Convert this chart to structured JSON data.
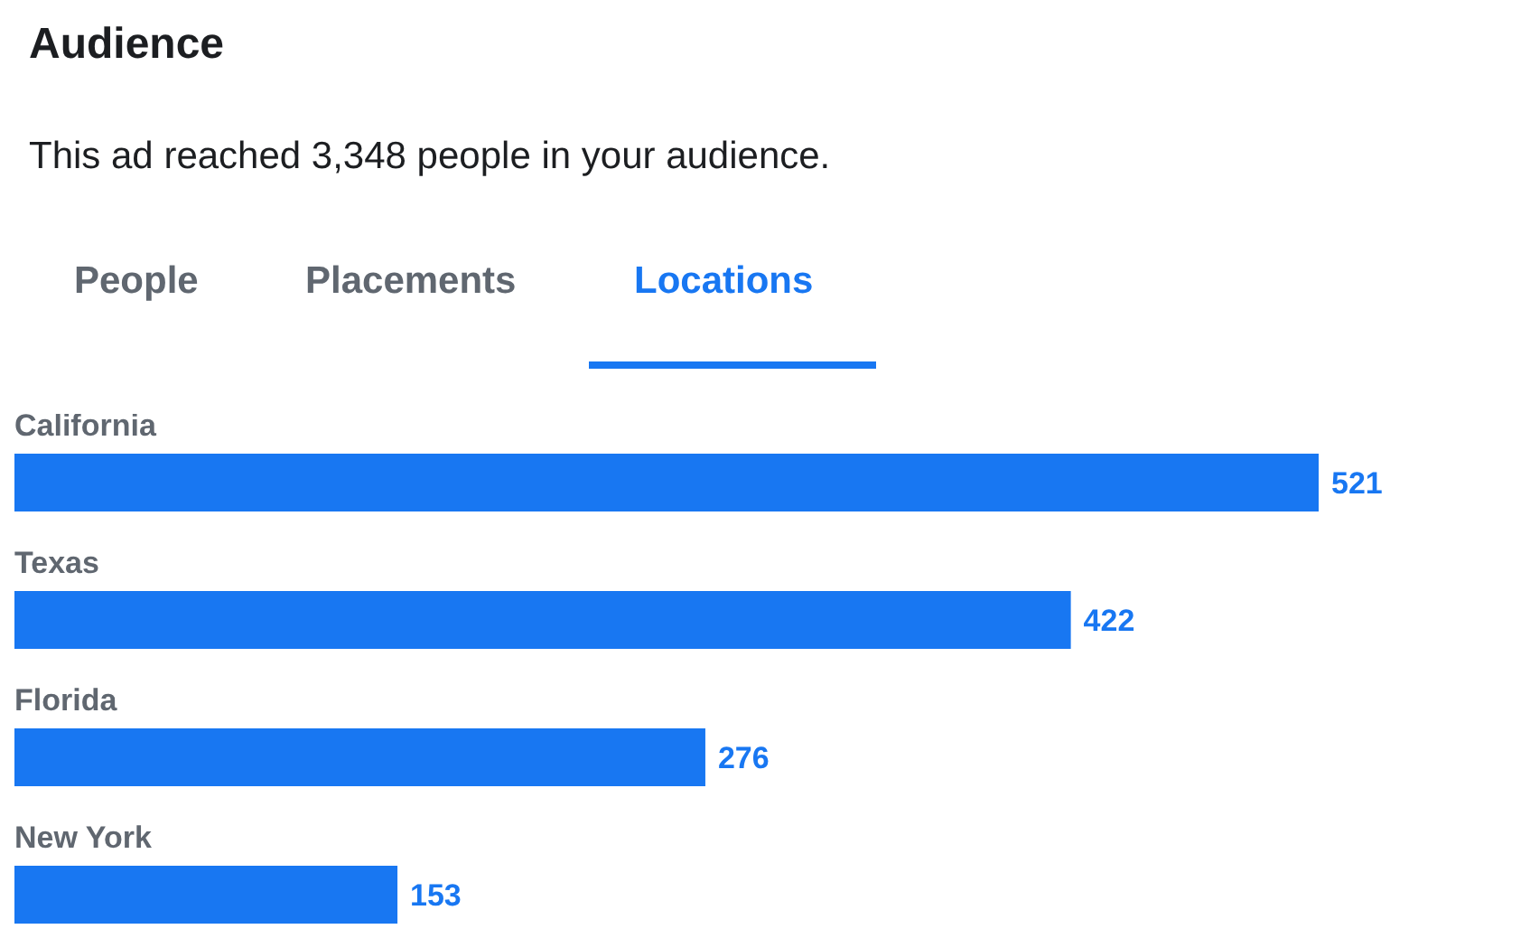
{
  "chart_data": {
    "type": "bar",
    "orientation": "horizontal",
    "title": "Audience",
    "subtitle": "This ad reached 3,348 people in your audience.",
    "annotations": [
      "People",
      "Placements",
      "Locations"
    ],
    "categories": [
      "California",
      "Texas",
      "Florida",
      "New York"
    ],
    "values": [
      521,
      422,
      276,
      153
    ],
    "color": "#1877f2",
    "data_labels": true,
    "grid": false,
    "legend": false
  }
}
